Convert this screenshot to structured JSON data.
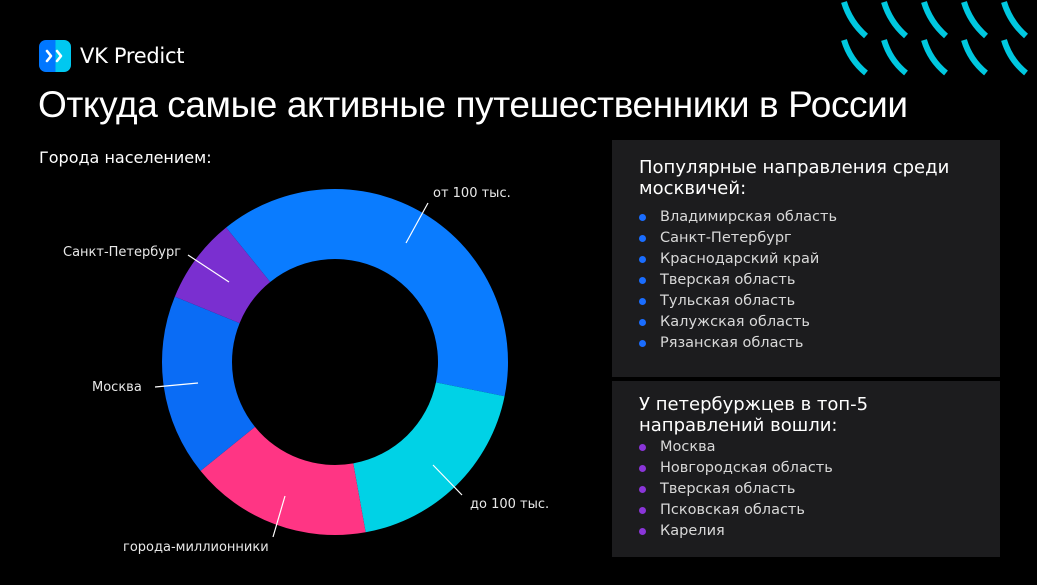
{
  "brand": {
    "name": "VK Predict",
    "icon": "chevrons-right-icon"
  },
  "title": "Откуда самые активные путешественники в России",
  "subtitle": "Города населением:",
  "colors": {
    "from_100k": "#0a7cff",
    "moscow": "#0a6cf5",
    "spb": "#7a2fd0",
    "millionaires": "#ff3584",
    "up_to_100k": "#00d2e6",
    "panel_bg": "#1c1c1e",
    "bullet_moscow": "#1a6dff",
    "bullet_spb": "#8a35d8",
    "deco": "#00c8e0"
  },
  "chart_data": {
    "type": "pie",
    "subtype": "donut",
    "title": "Города населением:",
    "categories": [
      "от 100 тыс.",
      "до 100 тыс.",
      "города-миллионники",
      "Москва",
      "Санкт-Петербург"
    ],
    "values": [
      39,
      19,
      17,
      17,
      8
    ],
    "unit": "approx. % of slice (no data labels shown)",
    "legend": "none (leader-line labels)"
  },
  "labels": {
    "from_100k": "от 100 тыс.",
    "up_to_100k": "до 100 тыс.",
    "millionaires": "города-миллионники",
    "moscow": "Москва",
    "spb": "Санкт-Петербург"
  },
  "panels": [
    {
      "title_line1": "Популярные направления среди",
      "title_line2": "москвичей:",
      "items": [
        "Владимирская область",
        "Санкт-Петербург",
        "Краснодарский край",
        "Тверская область",
        "Тульская область",
        "Калужская область",
        "Рязанская область"
      ]
    },
    {
      "title_line1": "У петербуржцев в топ-5",
      "title_line2": "направлений вошли:",
      "items": [
        "Москва",
        "Новгородская область",
        "Тверская область",
        "Псковская область",
        "Карелия"
      ]
    }
  ]
}
